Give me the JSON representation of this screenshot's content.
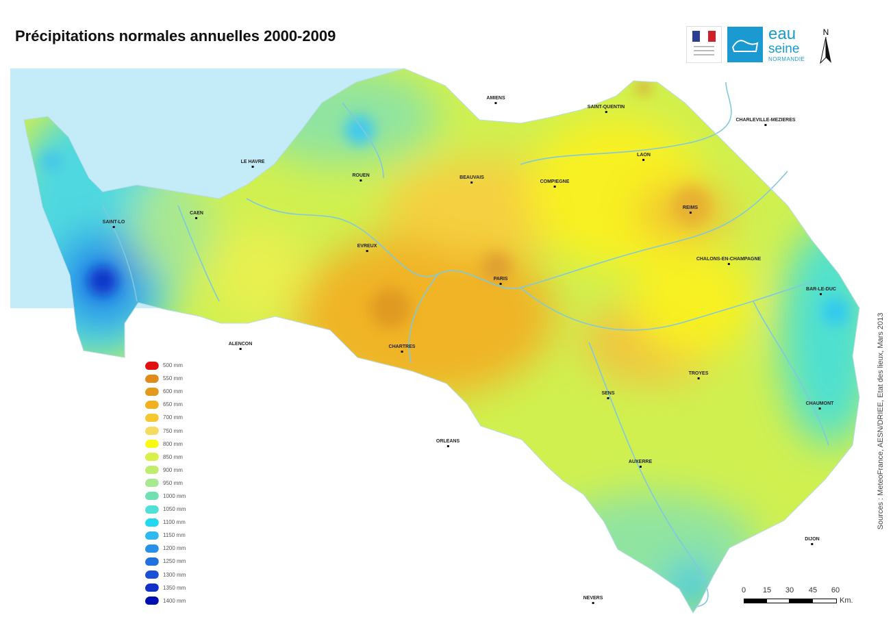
{
  "title": "Précipitations normales annuelles 2000-2009",
  "legend": {
    "items": [
      {
        "label": "500 mm",
        "color": "#e01010"
      },
      {
        "label": "550 mm",
        "color": "#e08a1a"
      },
      {
        "label": "600 mm",
        "color": "#e39a1c"
      },
      {
        "label": "650 mm",
        "color": "#f0b020"
      },
      {
        "label": "700 mm",
        "color": "#f5c830"
      },
      {
        "label": "750 mm",
        "color": "#f5dc60"
      },
      {
        "label": "800 mm",
        "color": "#fafa10"
      },
      {
        "label": "850 mm",
        "color": "#d8f048"
      },
      {
        "label": "900 mm",
        "color": "#c0ec70"
      },
      {
        "label": "950 mm",
        "color": "#a8e890"
      },
      {
        "label": "1000 mm",
        "color": "#70e0b0"
      },
      {
        "label": "1050 mm",
        "color": "#50e0d8"
      },
      {
        "label": "1100 mm",
        "color": "#20d8f0"
      },
      {
        "label": "1150 mm",
        "color": "#30b8f0"
      },
      {
        "label": "1200 mm",
        "color": "#2890e8"
      },
      {
        "label": "1250 mm",
        "color": "#2070e0"
      },
      {
        "label": "1300 mm",
        "color": "#1850d8"
      },
      {
        "label": "1350 mm",
        "color": "#1030c8"
      },
      {
        "label": "1400 mm",
        "color": "#0010b0"
      }
    ]
  },
  "cities": [
    "AMIENS",
    "SAINT-QUENTIN",
    "CHARLEVILLE-MEZIERES",
    "LE HAVRE",
    "ROUEN",
    "BEAUVAIS",
    "LAON",
    "COMPIEGNE",
    "REIMS",
    "SAINT-LO",
    "CAEN",
    "EVREUX",
    "PARIS",
    "CHALONS-EN-CHAMPAGNE",
    "BAR-LE-DUC",
    "ALENCON",
    "CHARTRES",
    "TROYES",
    "SENS",
    "CHAUMONT",
    "ORLEANS",
    "AUXERRE",
    "DIJON",
    "NEVERS"
  ],
  "logos": {
    "eau_line1": "eau",
    "eau_line2": "seine",
    "eau_line3": "NORMANDIE"
  },
  "north_label": "N",
  "sources": "Sources : MeteoFrance, AESN/DRIEE, Etat des lieux, Mars 2013",
  "scale": {
    "ticks": [
      "0",
      "15",
      "30",
      "45",
      "60"
    ],
    "unit": "Km."
  },
  "colors": {
    "sea": "#c4ecf8",
    "river": "#7fc8e0"
  }
}
